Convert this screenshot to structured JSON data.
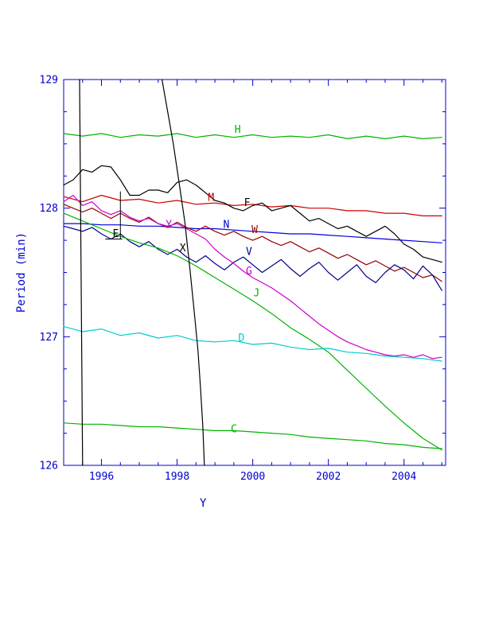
{
  "chart_data": {
    "type": "line",
    "title": "",
    "xlabel": "Y",
    "ylabel": "Period (min)",
    "xlim": [
      1995.0,
      2005.1
    ],
    "ylim": [
      126.0,
      129.0
    ],
    "grid": false,
    "legend": "inline-letter-labels",
    "background": "#ffffff",
    "axis_color": "#0000cd",
    "xticks": {
      "major": [
        1996,
        1998,
        2000,
        2002,
        2004
      ],
      "labels": [
        "1996",
        "1998",
        "2000",
        "2002",
        "2004"
      ],
      "minor_step": 0.5
    },
    "yticks": {
      "major": [
        126,
        127,
        128,
        129
      ],
      "labels": [
        "126",
        "127",
        "128",
        "129"
      ],
      "minor_step": 0.25
    },
    "series": [
      {
        "name": "H",
        "color": "#00b400",
        "x_start": 1995.0,
        "x_step": 0.5,
        "y": [
          128.58,
          128.56,
          128.58,
          128.55,
          128.57,
          128.56,
          128.58,
          128.55,
          128.57,
          128.55,
          128.57,
          128.55,
          128.56,
          128.55,
          128.57,
          128.54,
          128.56,
          128.54,
          128.56,
          128.54,
          128.55
        ]
      },
      {
        "name": "M",
        "color": "#cc0000",
        "x_start": 1995.0,
        "x_step": 0.5,
        "y": [
          128.09,
          128.05,
          128.1,
          128.06,
          128.07,
          128.04,
          128.06,
          128.03,
          128.04,
          128.02,
          128.03,
          128.01,
          128.02,
          128.0,
          128.0,
          127.98,
          127.98,
          127.96,
          127.96,
          127.94,
          127.94
        ]
      },
      {
        "name": "F",
        "color": "#000000",
        "x_start": 1995.0,
        "x_step": 0.25,
        "y": [
          128.18,
          128.22,
          128.3,
          128.28,
          128.33,
          128.32,
          128.22,
          128.1,
          128.1,
          128.14,
          128.14,
          128.12,
          128.2,
          128.22,
          128.18,
          128.12,
          128.06,
          128.04,
          128.0,
          127.98,
          128.02,
          128.04,
          127.98,
          128.0,
          128.02,
          127.96,
          127.9,
          127.92,
          127.88,
          127.84,
          127.86,
          127.82,
          127.78,
          127.82,
          127.86,
          127.8,
          127.72,
          127.68,
          127.62,
          127.6,
          127.58
        ]
      },
      {
        "name": "N",
        "color": "#0000dd",
        "x_start": 1995.0,
        "x_step": 0.5,
        "y": [
          127.88,
          127.88,
          127.87,
          127.87,
          127.86,
          127.86,
          127.85,
          127.84,
          127.84,
          127.83,
          127.82,
          127.81,
          127.8,
          127.8,
          127.79,
          127.78,
          127.77,
          127.76,
          127.75,
          127.74,
          127.73
        ]
      },
      {
        "name": "W",
        "color": "#990000",
        "x_start": 1995.0,
        "x_step": 0.25,
        "y": [
          128.03,
          128.0,
          127.97,
          128.0,
          127.96,
          127.92,
          127.96,
          127.92,
          127.89,
          127.93,
          127.88,
          127.85,
          127.89,
          127.85,
          127.82,
          127.86,
          127.82,
          127.79,
          127.82,
          127.78,
          127.75,
          127.78,
          127.74,
          127.71,
          127.74,
          127.7,
          127.66,
          127.69,
          127.65,
          127.61,
          127.64,
          127.6,
          127.56,
          127.59,
          127.55,
          127.51,
          127.54,
          127.5,
          127.46,
          127.48,
          127.43
        ]
      },
      {
        "name": "V",
        "color": "#00008b",
        "x_start": 1995.0,
        "x_step": 0.25,
        "y": [
          127.86,
          127.84,
          127.82,
          127.85,
          127.8,
          127.76,
          127.8,
          127.74,
          127.7,
          127.74,
          127.68,
          127.64,
          127.68,
          127.62,
          127.58,
          127.63,
          127.57,
          127.52,
          127.58,
          127.62,
          127.56,
          127.5,
          127.55,
          127.6,
          127.53,
          127.47,
          127.53,
          127.58,
          127.5,
          127.44,
          127.5,
          127.56,
          127.47,
          127.42,
          127.5,
          127.56,
          127.52,
          127.45,
          127.55,
          127.48,
          127.36
        ]
      },
      {
        "name": "G",
        "color": "#cc00cc",
        "x_start": 1995.0,
        "x_step": 0.25,
        "y": [
          128.05,
          128.1,
          128.02,
          128.05,
          127.98,
          127.95,
          127.98,
          127.93,
          127.9,
          127.92,
          127.88,
          127.86,
          127.88,
          127.84,
          127.8,
          127.76,
          127.68,
          127.62,
          127.57,
          127.51,
          127.46,
          127.42,
          127.38,
          127.33,
          127.28,
          127.22,
          127.16,
          127.1,
          127.05,
          127.0,
          126.96,
          126.93,
          126.9,
          126.88,
          126.86,
          126.85,
          126.86,
          126.84,
          126.86,
          126.83,
          126.84
        ]
      },
      {
        "name": "J",
        "color": "#00b400",
        "x_start": 1995.0,
        "x_step": 0.5,
        "y": [
          127.96,
          127.9,
          127.84,
          127.78,
          127.73,
          127.69,
          127.63,
          127.55,
          127.46,
          127.37,
          127.28,
          127.18,
          127.07,
          126.98,
          126.88,
          126.74,
          126.6,
          126.46,
          126.33,
          126.21,
          126.12
        ]
      },
      {
        "name": "D",
        "color": "#00cccc",
        "x_start": 1995.0,
        "x_step": 0.5,
        "y": [
          127.08,
          127.04,
          127.06,
          127.01,
          127.03,
          126.99,
          127.01,
          126.97,
          126.96,
          126.97,
          126.94,
          126.95,
          126.92,
          126.9,
          126.91,
          126.88,
          126.87,
          126.85,
          126.84,
          126.83,
          126.81
        ]
      },
      {
        "name": "C",
        "color": "#00b400",
        "x_start": 1995.0,
        "x_step": 0.5,
        "y": [
          126.33,
          126.32,
          126.32,
          126.31,
          126.3,
          126.3,
          126.29,
          126.28,
          126.27,
          126.27,
          126.26,
          126.25,
          126.24,
          126.22,
          126.21,
          126.2,
          126.19,
          126.17,
          126.16,
          126.14,
          126.13
        ]
      },
      {
        "name": "track-1",
        "color": "#000000",
        "x": [
          1995.42,
          1995.46,
          1995.5
        ],
        "y": [
          129.0,
          127.5,
          126.0
        ]
      },
      {
        "name": "track-2",
        "color": "#000000",
        "x": [
          1997.6,
          1997.75,
          1997.9,
          1998.05,
          1998.2,
          1998.33,
          1998.45,
          1998.55,
          1998.62,
          1998.68,
          1998.72
        ],
        "y": [
          129.0,
          128.75,
          128.5,
          128.2,
          127.9,
          127.55,
          127.2,
          126.9,
          126.6,
          126.3,
          126.0
        ]
      }
    ],
    "annotations": [
      {
        "text": "H",
        "x": 1999.6,
        "y": 128.61,
        "color": "#00b400"
      },
      {
        "text": "M",
        "x": 1998.9,
        "y": 128.08,
        "color": "#cc0000"
      },
      {
        "text": "F",
        "x": 1999.85,
        "y": 128.04,
        "color": "#000000"
      },
      {
        "text": "E",
        "x": 1996.38,
        "y": 127.8,
        "color": "#000000"
      },
      {
        "text": "N",
        "x": 1999.3,
        "y": 127.87,
        "color": "#0000dd"
      },
      {
        "text": "W",
        "x": 2000.05,
        "y": 127.83,
        "color": "#990000"
      },
      {
        "text": "V",
        "x": 1999.9,
        "y": 127.66,
        "color": "#00008b"
      },
      {
        "text": "G",
        "x": 1999.9,
        "y": 127.51,
        "color": "#cc00cc"
      },
      {
        "text": "J",
        "x": 2000.1,
        "y": 127.34,
        "color": "#00b400"
      },
      {
        "text": "D",
        "x": 1999.7,
        "y": 126.99,
        "color": "#00cccc"
      },
      {
        "text": "C",
        "x": 1999.5,
        "y": 126.28,
        "color": "#00b400"
      },
      {
        "text": "X",
        "x": 1998.15,
        "y": 127.69,
        "color": "#000000"
      },
      {
        "text": "Y",
        "x": 1997.78,
        "y": 127.87,
        "color": "#cc00cc"
      }
    ],
    "marker_segments": [
      {
        "x1": 1996.5,
        "y1": 128.13,
        "x2": 1996.5,
        "y2": 127.76,
        "color": "#000000"
      },
      {
        "x1": 1996.1,
        "y1": 127.76,
        "x2": 1996.55,
        "y2": 127.76,
        "color": "#000000"
      }
    ]
  }
}
